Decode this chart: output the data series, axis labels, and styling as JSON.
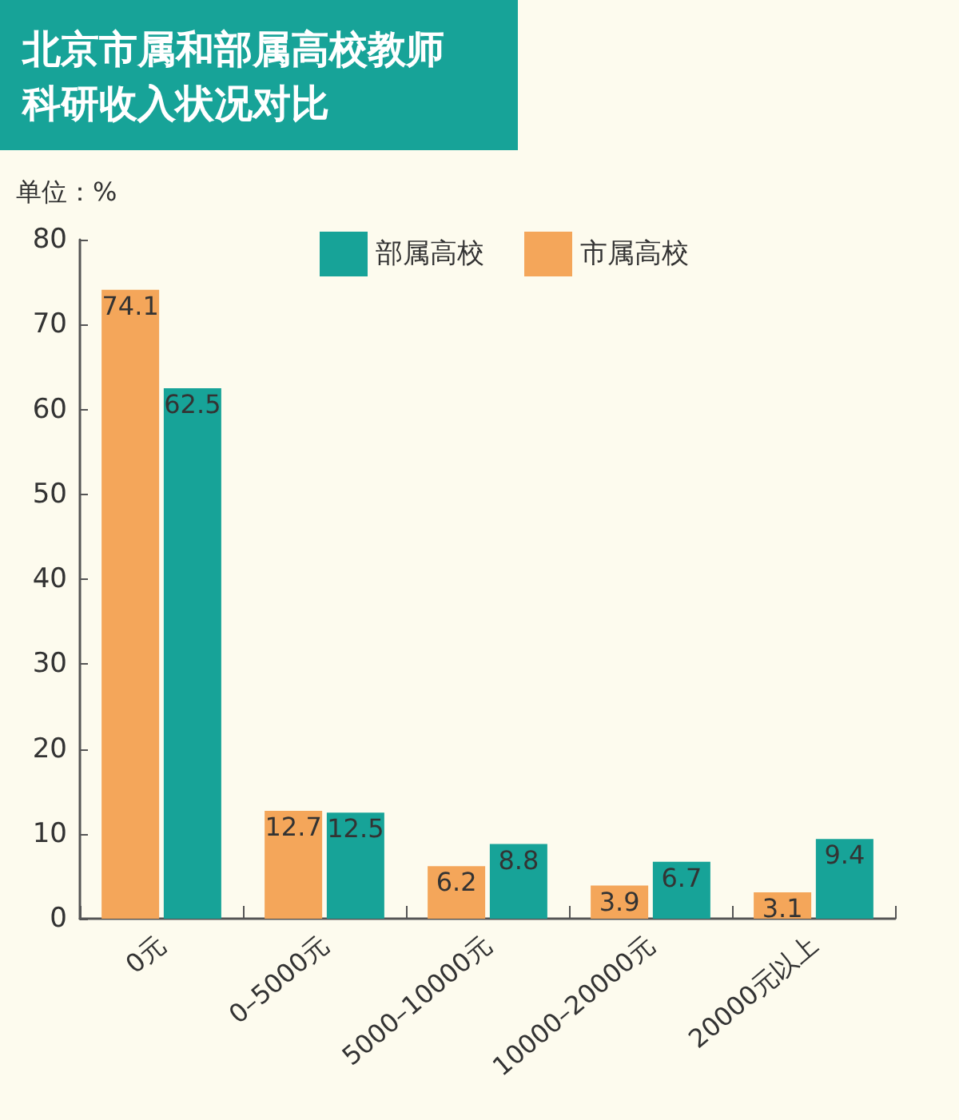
{
  "chart_data": {
    "type": "bar",
    "title": "北京市属和部属高校教师科研收入状况对比",
    "ylabel": "单位：%",
    "categories": [
      "0元",
      "0–5000元",
      "5000–10000元",
      "10000–20000元",
      "20000元以上"
    ],
    "series": [
      {
        "name": "市属高校",
        "color": "#f4a65a",
        "values": [
          74.1,
          12.7,
          6.2,
          3.9,
          3.1
        ]
      },
      {
        "name": "部属高校",
        "color": "#17a398",
        "values": [
          62.5,
          12.5,
          8.8,
          6.7,
          9.4
        ]
      }
    ],
    "ylim": [
      0,
      80
    ],
    "yticks": [
      0,
      10,
      20,
      30,
      40,
      50,
      60,
      70,
      80
    ],
    "grid": false,
    "legend": "top right",
    "data_labels": true
  }
}
